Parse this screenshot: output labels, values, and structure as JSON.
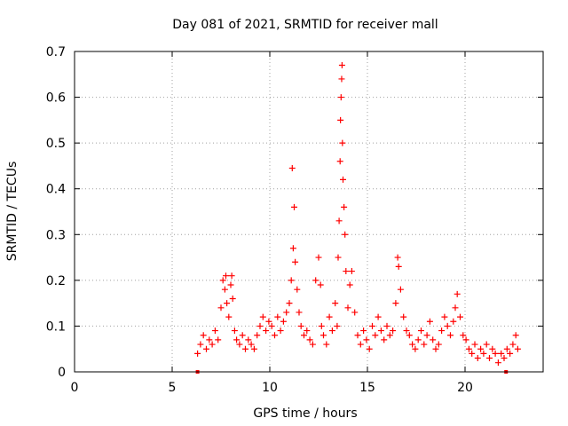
{
  "chart_data": {
    "type": "scatter",
    "title": "Day 081 of 2021, SRMTID for receiver mall",
    "xlabel": "GPS time / hours",
    "ylabel": "SRMTID / TECUs",
    "xlim": [
      0,
      24
    ],
    "ylim": [
      0,
      0.7
    ],
    "xticks": [
      0,
      5,
      10,
      15,
      20
    ],
    "yticks": [
      0,
      0.1,
      0.2,
      0.3,
      0.4,
      0.5,
      0.6,
      0.7
    ],
    "xtick_labels": [
      "0",
      "5",
      "10",
      "15",
      "20"
    ],
    "ytick_labels": [
      "0",
      "0.1",
      "0.2",
      "0.3",
      "0.4",
      "0.5",
      "0.6",
      "0.7"
    ],
    "grid": true,
    "marker": "+",
    "series_color": "#ff0000",
    "series": [
      {
        "name": "SRMTID",
        "x": [
          6.3,
          6.45,
          6.6,
          6.75,
          6.9,
          7.05,
          7.2,
          7.35,
          7.5,
          7.6,
          7.7,
          7.75,
          7.8,
          7.9,
          8.0,
          8.05,
          8.1,
          8.2,
          8.3,
          8.45,
          8.6,
          8.75,
          8.9,
          9.05,
          9.2,
          9.35,
          9.5,
          9.65,
          9.8,
          9.95,
          10.1,
          10.25,
          10.4,
          10.55,
          10.7,
          10.85,
          11.0,
          11.1,
          11.15,
          11.2,
          11.25,
          11.3,
          11.4,
          11.5,
          11.6,
          11.75,
          11.9,
          12.05,
          12.2,
          12.35,
          12.5,
          12.6,
          12.65,
          12.75,
          12.9,
          13.05,
          13.2,
          13.35,
          13.45,
          13.5,
          13.55,
          13.6,
          13.62,
          13.65,
          13.68,
          13.7,
          13.72,
          13.75,
          13.8,
          13.85,
          13.9,
          14.0,
          14.1,
          14.2,
          14.35,
          14.5,
          14.65,
          14.8,
          14.95,
          15.1,
          15.25,
          15.4,
          15.55,
          15.7,
          15.85,
          16.0,
          16.15,
          16.3,
          16.45,
          16.55,
          16.6,
          16.7,
          16.85,
          17.0,
          17.15,
          17.3,
          17.45,
          17.6,
          17.75,
          17.9,
          18.05,
          18.2,
          18.35,
          18.5,
          18.65,
          18.8,
          18.95,
          19.1,
          19.25,
          19.4,
          19.5,
          19.6,
          19.75,
          19.9,
          20.05,
          20.2,
          20.35,
          20.5,
          20.65,
          20.8,
          20.95,
          21.1,
          21.25,
          21.4,
          21.55,
          21.7,
          21.85,
          22.0,
          22.15,
          22.3,
          22.45,
          22.6,
          22.7
        ],
        "y": [
          0.04,
          0.06,
          0.08,
          0.05,
          0.07,
          0.06,
          0.09,
          0.07,
          0.14,
          0.2,
          0.18,
          0.21,
          0.15,
          0.12,
          0.19,
          0.21,
          0.16,
          0.09,
          0.07,
          0.06,
          0.08,
          0.05,
          0.07,
          0.06,
          0.05,
          0.08,
          0.1,
          0.12,
          0.09,
          0.11,
          0.1,
          0.08,
          0.12,
          0.09,
          0.11,
          0.13,
          0.15,
          0.2,
          0.445,
          0.27,
          0.36,
          0.24,
          0.18,
          0.13,
          0.1,
          0.08,
          0.09,
          0.07,
          0.06,
          0.2,
          0.25,
          0.19,
          0.1,
          0.08,
          0.06,
          0.12,
          0.09,
          0.15,
          0.1,
          0.25,
          0.33,
          0.46,
          0.55,
          0.6,
          0.64,
          0.67,
          0.5,
          0.42,
          0.36,
          0.3,
          0.22,
          0.14,
          0.19,
          0.22,
          0.13,
          0.08,
          0.06,
          0.09,
          0.07,
          0.05,
          0.1,
          0.08,
          0.12,
          0.09,
          0.07,
          0.1,
          0.08,
          0.09,
          0.15,
          0.25,
          0.23,
          0.18,
          0.12,
          0.09,
          0.08,
          0.06,
          0.05,
          0.07,
          0.09,
          0.06,
          0.08,
          0.11,
          0.07,
          0.05,
          0.06,
          0.09,
          0.12,
          0.1,
          0.08,
          0.11,
          0.14,
          0.17,
          0.12,
          0.08,
          0.07,
          0.05,
          0.04,
          0.06,
          0.03,
          0.05,
          0.04,
          0.06,
          0.03,
          0.05,
          0.04,
          0.02,
          0.04,
          0.03,
          0.05,
          0.04,
          0.06,
          0.08,
          0.05
        ],
        "x_extra_zero": [
          6.3,
          22.1
        ],
        "y_extra_zero": [
          0.0,
          0.0
        ]
      }
    ]
  }
}
